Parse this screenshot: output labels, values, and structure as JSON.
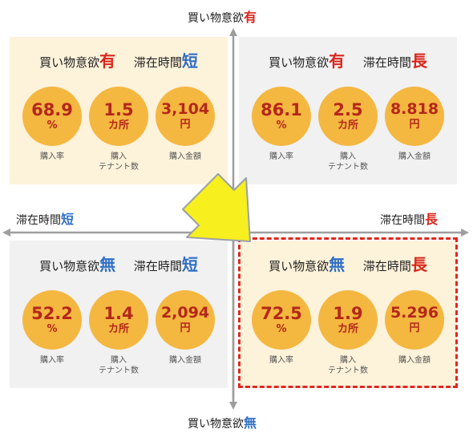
{
  "axes": {
    "top": {
      "prefix": "買い物意欲",
      "emph": "有"
    },
    "bottom": {
      "prefix": "買い物意欲",
      "emph": "無"
    },
    "left": {
      "prefix": "滞在時間",
      "emph": "短"
    },
    "right": {
      "prefix": "滞在時間",
      "emph": "長"
    }
  },
  "captions": {
    "rate": "購入率",
    "tenant_line1": "購入",
    "tenant_line2": "テナント数",
    "amount": "購入金額"
  },
  "quadrants": {
    "tl": {
      "desire_prefix": "買い物意欲",
      "desire_emph": "有",
      "time_prefix": "滞在時間",
      "time_emph": "短",
      "rate": {
        "value": "68.9",
        "unit": "%"
      },
      "tenants": {
        "value": "1.5",
        "unit": "カ所"
      },
      "amount": {
        "value": "3,104",
        "unit": "円"
      }
    },
    "tr": {
      "desire_prefix": "買い物意欲",
      "desire_emph": "有",
      "time_prefix": "滞在時間",
      "time_emph": "長",
      "rate": {
        "value": "86.1",
        "unit": "%"
      },
      "tenants": {
        "value": "2.5",
        "unit": "カ所"
      },
      "amount": {
        "value": "8.818",
        "unit": "円"
      }
    },
    "bl": {
      "desire_prefix": "買い物意欲",
      "desire_emph": "無",
      "time_prefix": "滞在時間",
      "time_emph": "短",
      "rate": {
        "value": "52.2",
        "unit": "%"
      },
      "tenants": {
        "value": "1.4",
        "unit": "カ所"
      },
      "amount": {
        "value": "2,094",
        "unit": "円"
      }
    },
    "br": {
      "desire_prefix": "買い物意欲",
      "desire_emph": "無",
      "time_prefix": "滞在時間",
      "time_emph": "長",
      "rate": {
        "value": "72.5",
        "unit": "%"
      },
      "tenants": {
        "value": "1.9",
        "unit": "カ所"
      },
      "amount": {
        "value": "5.296",
        "unit": "円"
      }
    }
  },
  "colors": {
    "accent_red": "#d9261c",
    "accent_blue": "#2f6fc6",
    "circle": "#f4b740",
    "value_text": "#b5271a",
    "highlight_border": "#e0281f",
    "arrow_fill": "#f7ef1e"
  }
}
